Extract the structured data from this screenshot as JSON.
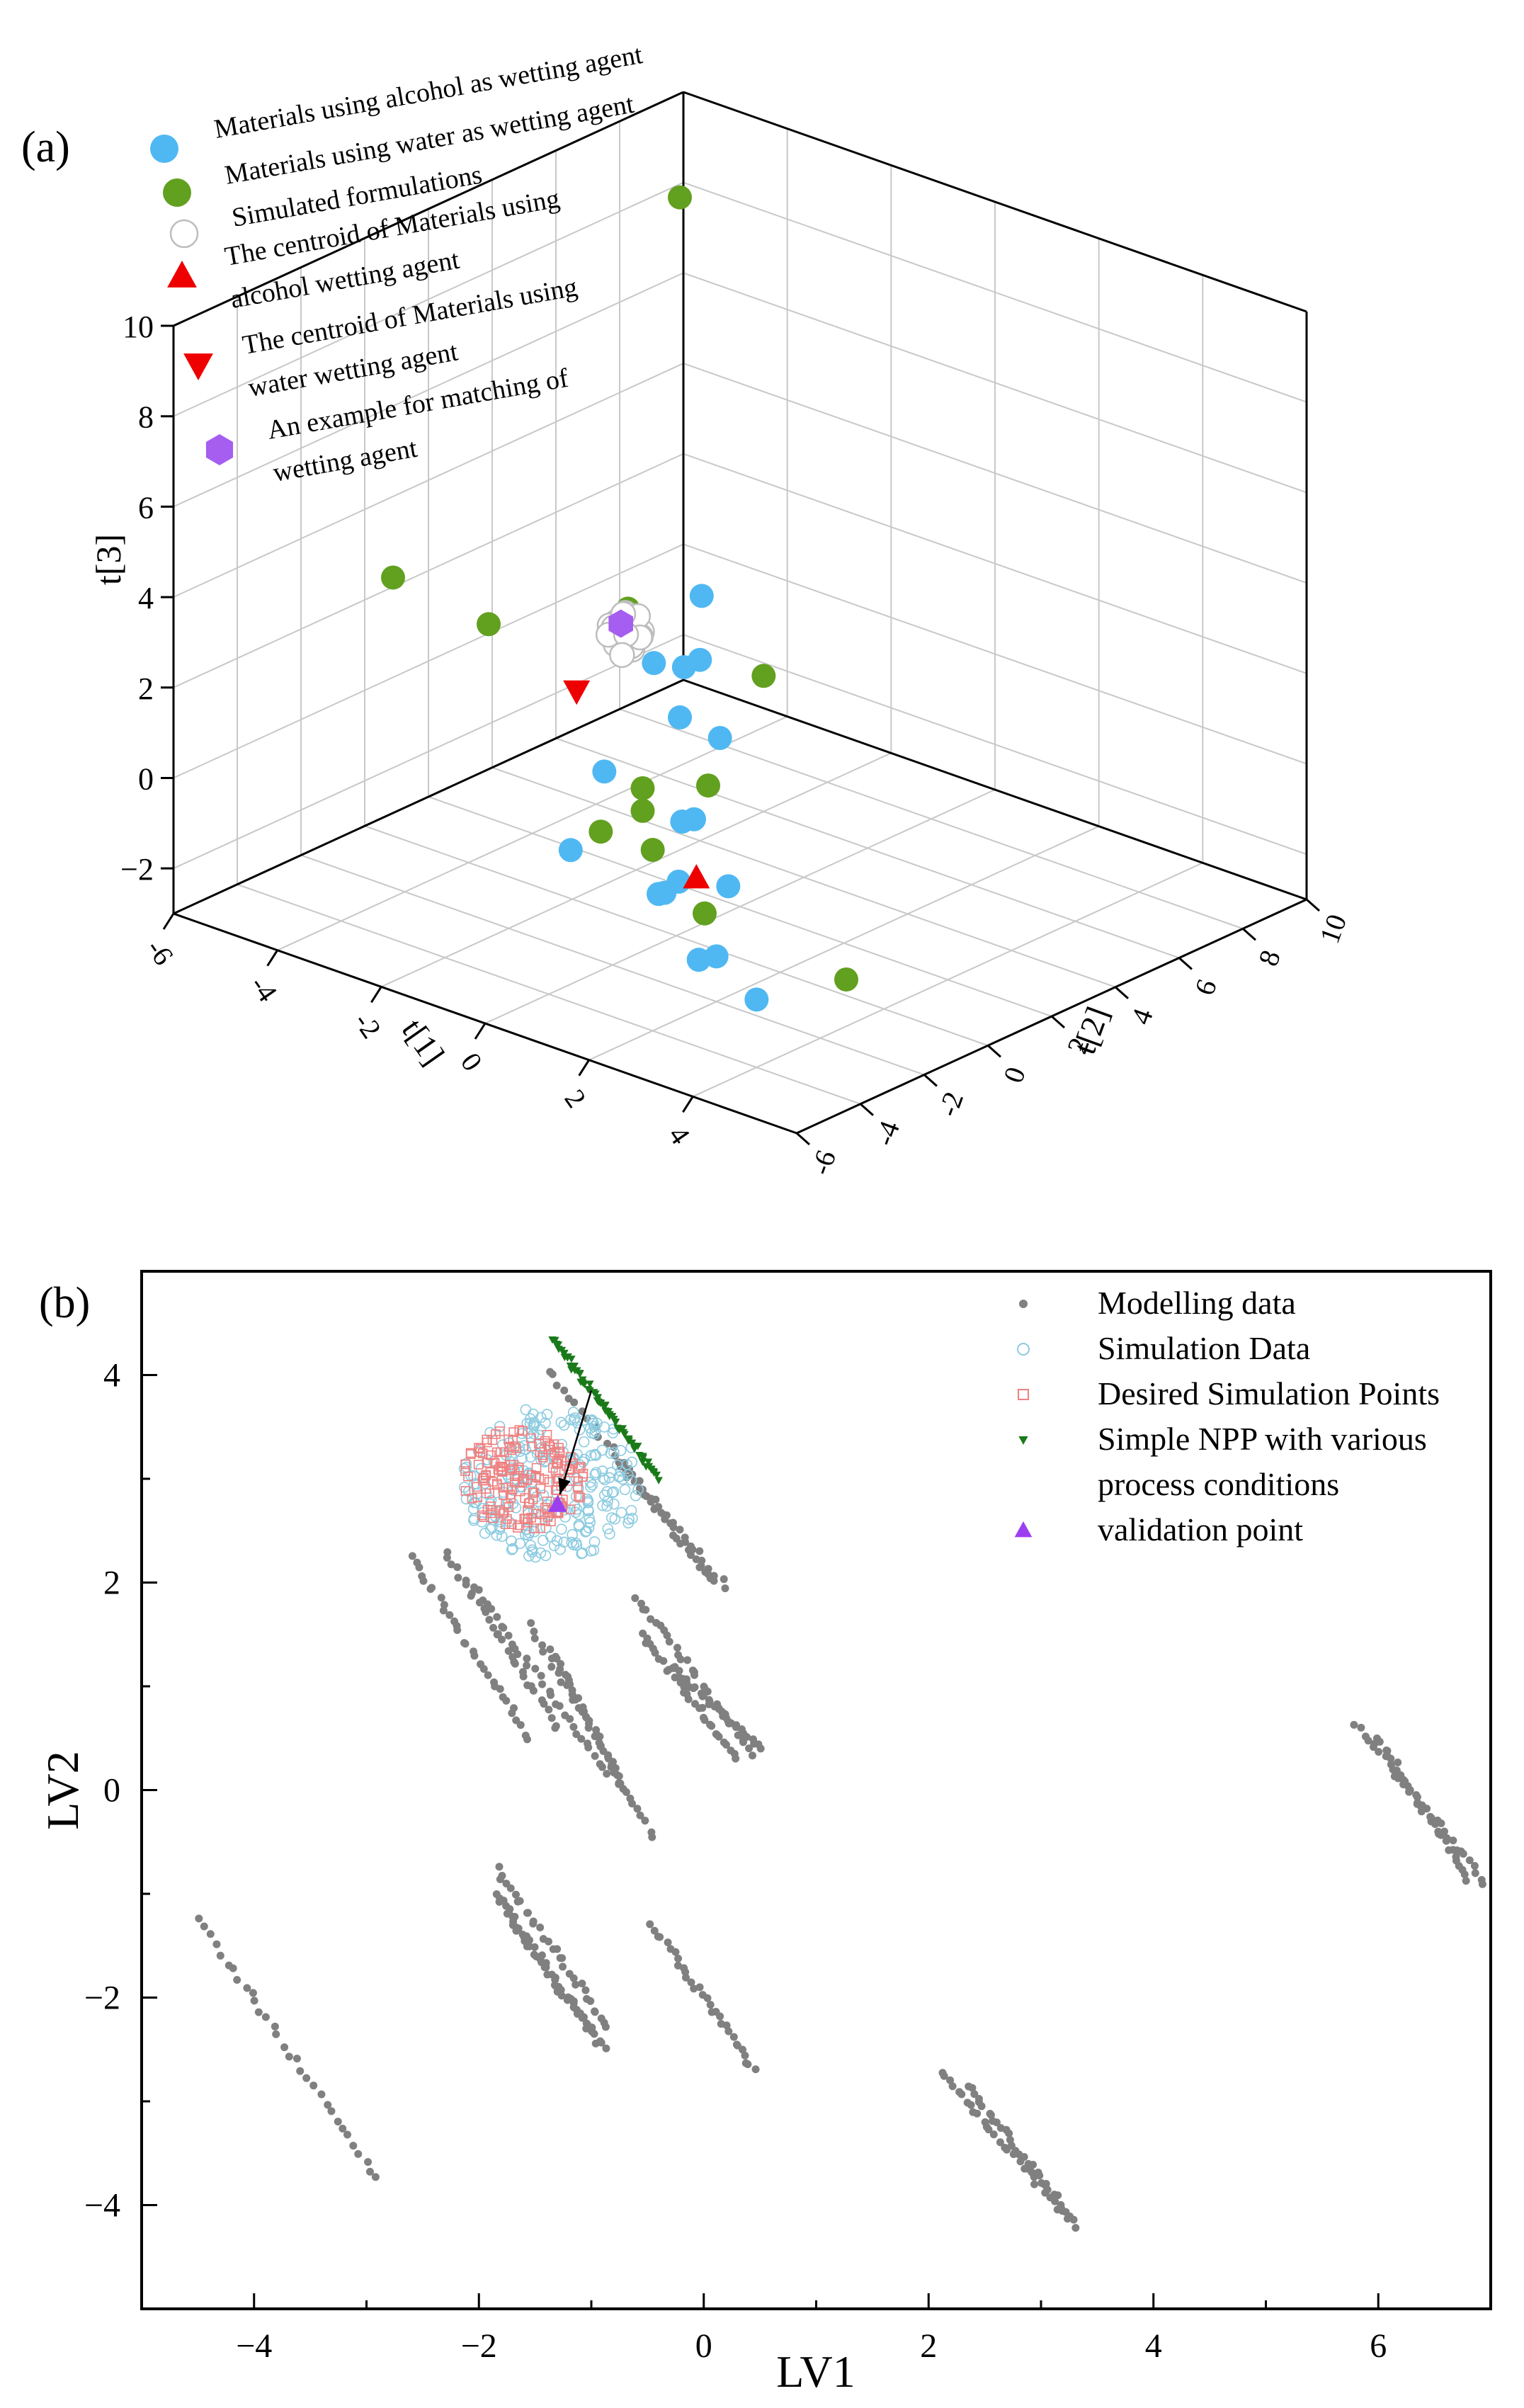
{
  "chart_data": [
    {
      "panel_label": "(a)",
      "type": "scatter3d",
      "axes": {
        "x": {
          "label": "t[1]",
          "range": [
            -6,
            6
          ],
          "ticks": [
            -6,
            -4,
            -2,
            0,
            2,
            4
          ],
          "tick_labels": [
            "-6",
            "-4",
            "-2",
            "0",
            "2",
            "4"
          ]
        },
        "y": {
          "label": "t[2]",
          "range": [
            -6,
            10
          ],
          "ticks": [
            -6,
            -4,
            -2,
            0,
            2,
            4,
            6,
            8,
            10
          ],
          "tick_labels": [
            "-6",
            "-4",
            "-2",
            "0",
            "2",
            "4",
            "6",
            "8",
            "10"
          ]
        },
        "z": {
          "label": "t[3]",
          "range": [
            -3,
            10
          ],
          "ticks": [
            -2,
            0,
            2,
            4,
            6,
            8,
            10
          ],
          "tick_labels": [
            "−2",
            "0",
            "2",
            "4",
            "6",
            "8",
            "10"
          ]
        }
      },
      "legend": [
        {
          "marker": "circle",
          "color": "#4fb8f2",
          "lines": [
            "Materials using alcohol as wetting agent"
          ]
        },
        {
          "marker": "circle",
          "color": "#62a01f",
          "lines": [
            "Materials using water as wetting agent"
          ]
        },
        {
          "marker": "open-circle",
          "color": "#bdbdbd",
          "lines": [
            "Simulated formulations"
          ]
        },
        {
          "marker": "triangle-up",
          "color": "#ee0000",
          "lines": [
            "The centroid of Materials using",
            "alcohol wetting agent"
          ]
        },
        {
          "marker": "triangle-down",
          "color": "#ee0000",
          "lines": [
            "The centroid of Materials using",
            "water wetting agent"
          ]
        },
        {
          "marker": "hexagon",
          "color": "#a55ef0",
          "lines": [
            "An example for matching of",
            "wetting agent"
          ]
        }
      ],
      "series": [
        {
          "name": "Materials using alcohol as wetting agent",
          "color": "#4fb8f2",
          "points": [
            [
              4.0,
              -4.0,
              -1.5
            ],
            [
              3.5,
              -5.0,
              -0.5
            ],
            [
              1.5,
              -3.0,
              -0.5
            ],
            [
              2.5,
              -4.0,
              0.5
            ],
            [
              1.0,
              -2.0,
              -1.0
            ],
            [
              2.0,
              -2.0,
              -2.0
            ],
            [
              1.0,
              0.0,
              -1.5
            ],
            [
              -0.5,
              -2.5,
              -0.5
            ],
            [
              -0.5,
              1.0,
              -1.0
            ],
            [
              -2.0,
              1.0,
              -0.5
            ],
            [
              -1.0,
              3.0,
              0.0
            ],
            [
              -2.0,
              3.5,
              1.0
            ],
            [
              -2.0,
              4.0,
              1.0
            ],
            [
              -3.5,
              5.0,
              0.0
            ],
            [
              -3.5,
              6.5,
              1.0
            ],
            [
              -3.0,
              5.0,
              -1.0
            ],
            [
              -1.5,
              3.0,
              -2.0
            ]
          ]
        },
        {
          "name": "Materials using water as wetting agent",
          "color": "#62a01f",
          "points": [
            [
              -3.0,
              5.0,
              10.5
            ],
            [
              -3.0,
              -4.0,
              5.0
            ],
            [
              -3.0,
              -1.0,
              3.0
            ],
            [
              -4.0,
              5.0,
              1.0
            ],
            [
              -2.0,
              6.0,
              0.0
            ],
            [
              3.0,
              -4.0,
              0.0
            ],
            [
              2.0,
              -4.0,
              1.0
            ],
            [
              1.5,
              -3.5,
              2.0
            ],
            [
              1.5,
              -3.5,
              1.5
            ],
            [
              1.0,
              -4.0,
              1.0
            ],
            [
              0.0,
              1.0,
              0.0
            ],
            [
              4.5,
              -2.0,
              -1.5
            ]
          ]
        },
        {
          "name": "Simulated formulations",
          "color": "#bdbdbd",
          "points": [
            [
              -3.5,
              4.0,
              1.0
            ],
            [
              -3.5,
              4.2,
              1.1
            ],
            [
              -3.4,
              4.1,
              0.9
            ],
            [
              -3.6,
              4.0,
              1.2
            ],
            [
              -3.3,
              4.3,
              1.0
            ],
            [
              -3.5,
              3.8,
              0.8
            ],
            [
              -3.7,
              4.2,
              1.1
            ],
            [
              -3.4,
              3.9,
              1.3
            ],
            [
              -3.6,
              4.4,
              0.9
            ],
            [
              -3.5,
              4.1,
              1.4
            ],
            [
              -3.3,
              4.0,
              0.7
            ],
            [
              -3.8,
              4.1,
              1.0
            ],
            [
              -3.5,
              4.3,
              0.6
            ],
            [
              -3.6,
              3.9,
              1.1
            ],
            [
              -3.4,
              4.2,
              1.2
            ],
            [
              -3.2,
              4.1,
              1.0
            ],
            [
              -3.7,
              3.9,
              0.9
            ],
            [
              -3.5,
              4.5,
              1.2
            ],
            [
              -3.4,
              4.4,
              0.8
            ],
            [
              -3.6,
              4.2,
              1.3
            ],
            [
              -3.3,
              3.8,
              1.1
            ],
            [
              -3.5,
              4.0,
              0.5
            ]
          ]
        },
        {
          "name": "The centroid of Materials using alcohol wetting agent",
          "color": "#ee0000",
          "points": [
            [
              1.0,
              -1.0,
              -1.0
            ]
          ]
        },
        {
          "name": "The centroid of Materials using water wetting agent",
          "color": "#ee0000",
          "points": [
            [
              -1.0,
              -1.5,
              2.5
            ]
          ]
        },
        {
          "name": "An example for matching of wetting agent",
          "color": "#a55ef0",
          "points": [
            [
              -3.4,
              3.8,
              1.3
            ]
          ]
        }
      ]
    },
    {
      "panel_label": "(b)",
      "type": "scatter",
      "xlabel": "LV1",
      "ylabel": "LV2",
      "xlim": [
        -5,
        7
      ],
      "ylim": [
        -5,
        5
      ],
      "xticks": [
        -4,
        -2,
        0,
        2,
        4,
        6
      ],
      "xtick_labels": [
        "−4",
        "−2",
        "0",
        "2",
        "4",
        "6"
      ],
      "yticks": [
        -4,
        -2,
        0,
        2,
        4
      ],
      "ytick_labels": [
        "−4",
        "−2",
        "0",
        "2",
        "4"
      ],
      "legend": [
        {
          "marker": "dot",
          "color": "#808080",
          "lines": [
            "Modelling data"
          ]
        },
        {
          "marker": "open-circle",
          "color": "#8ccbe0",
          "lines": [
            "Simulation Data"
          ]
        },
        {
          "marker": "open-square",
          "color": "#f08080",
          "lines": [
            "Desired Simulation Points"
          ]
        },
        {
          "marker": "small-triangle-down",
          "color": "#1a7a1a",
          "lines": [
            "Simple NPP with various",
            "process conditions"
          ]
        },
        {
          "marker": "triangle-up",
          "color": "#9b3ff0",
          "lines": [
            "validation point"
          ]
        }
      ],
      "modelling_data_bands": [
        {
          "start": [
            -4.5,
            -1.25
          ],
          "end": [
            -2.9,
            -3.75
          ],
          "width": 0.06
        },
        {
          "start": [
            -1.85,
            -0.75
          ],
          "end": [
            -0.85,
            -2.3
          ],
          "width": 0.06
        },
        {
          "start": [
            -1.85,
            -1.0
          ],
          "end": [
            -0.9,
            -2.5
          ],
          "width": 0.06
        },
        {
          "start": [
            -1.8,
            -1.1
          ],
          "end": [
            -0.95,
            -2.4
          ],
          "width": 0.05
        },
        {
          "start": [
            -0.45,
            -1.3
          ],
          "end": [
            0.45,
            -2.7
          ],
          "width": 0.05
        },
        {
          "start": [
            2.1,
            -2.7
          ],
          "end": [
            3.3,
            -4.2
          ],
          "width": 0.05
        },
        {
          "start": [
            2.35,
            -2.85
          ],
          "end": [
            3.25,
            -4.1
          ],
          "width": 0.05
        },
        {
          "start": [
            5.8,
            0.65
          ],
          "end": [
            6.95,
            -0.9
          ],
          "width": 0.05
        },
        {
          "start": [
            6.0,
            0.5
          ],
          "end": [
            6.8,
            -0.85
          ],
          "width": 0.05
        },
        {
          "start": [
            -2.6,
            2.25
          ],
          "end": [
            -1.55,
            0.5
          ],
          "width": 0.05
        },
        {
          "start": [
            -2.3,
            2.3
          ],
          "end": [
            -1.3,
            0.6
          ],
          "width": 0.05
        },
        {
          "start": [
            -2.05,
            1.95
          ],
          "end": [
            -0.85,
            0.15
          ],
          "width": 0.05
        },
        {
          "start": [
            -1.55,
            1.6
          ],
          "end": [
            -0.45,
            -0.45
          ],
          "width": 0.05
        },
        {
          "start": [
            -1.35,
            1.35
          ],
          "end": [
            -0.7,
            0.0
          ],
          "width": 0.05
        },
        {
          "start": [
            -0.6,
            1.85
          ],
          "end": [
            0.45,
            0.35
          ],
          "width": 0.05
        },
        {
          "start": [
            -0.55,
            1.5
          ],
          "end": [
            0.3,
            0.3
          ],
          "width": 0.05
        },
        {
          "start": [
            -0.3,
            1.2
          ],
          "end": [
            0.5,
            0.4
          ],
          "width": 0.05
        },
        {
          "start": [
            -1.4,
            4.05
          ],
          "end": [
            0.2,
            1.95
          ],
          "width": 0.05
        },
        {
          "start": [
            -0.75,
            3.15
          ],
          "end": [
            0.1,
            2.0
          ],
          "width": 0.05
        }
      ],
      "simulation_data": {
        "center": [
          -1.35,
          2.95
        ],
        "radius": [
          0.8,
          0.75
        ]
      },
      "desired_simulation_points": {
        "center": [
          -1.6,
          3.0
        ],
        "radius": [
          0.55,
          0.5
        ]
      },
      "simple_npp": {
        "start": [
          -1.35,
          4.35
        ],
        "end": [
          -0.4,
          3.0
        ]
      },
      "validation_point": [
        -1.3,
        2.75
      ],
      "arrow": {
        "from": [
          -1.0,
          3.85
        ],
        "to": [
          -1.28,
          2.85
        ]
      }
    }
  ]
}
